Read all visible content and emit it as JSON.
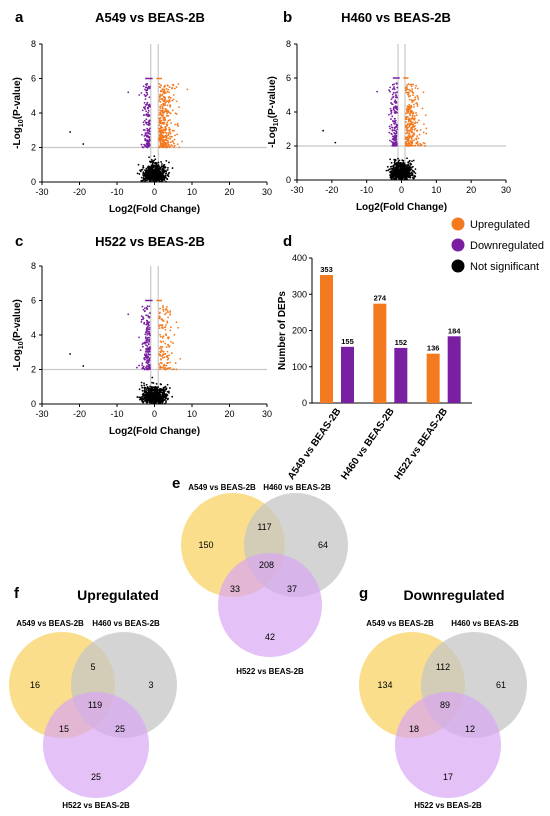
{
  "colors": {
    "up": "#f47a1f",
    "down": "#7a1fa2",
    "ns": "#000000",
    "grid": "#c8c8c8",
    "vennA": "#f8d366",
    "vennB": "#c6c6c6",
    "vennC": "#d9a6f2"
  },
  "panels": {
    "a": "a",
    "b": "b",
    "c": "c",
    "d": "d",
    "e": "e",
    "f": "f",
    "g": "g"
  },
  "legend": [
    {
      "label": "Upregulated",
      "color": "#f47a1f"
    },
    {
      "label": "Downregulated",
      "color": "#7a1fa2"
    },
    {
      "label": "Not significant",
      "color": "#000000"
    }
  ],
  "chart_data": [
    {
      "id": "a",
      "type": "scatter",
      "title": "A549 vs BEAS-2B",
      "xlabel": "Log2(Fold Change)",
      "ylabel_main": "-Log",
      "ylabel_sub": "10",
      "ylabel_rest": "(P-value)",
      "xlim": [
        -30,
        30
      ],
      "ylim": [
        0,
        8
      ],
      "xticks": [
        -30,
        -20,
        -10,
        0,
        10,
        20,
        30
      ],
      "yticks": [
        0,
        2,
        4,
        6,
        8
      ],
      "thresholds": {
        "y": 2,
        "x": [
          -1,
          1
        ]
      },
      "seed": 7,
      "counts": {
        "up": 353,
        "down": 155,
        "ns": 700
      }
    },
    {
      "id": "b",
      "type": "scatter",
      "title": "H460 vs BEAS-2B",
      "xlabel": "Log2(Fold Change)",
      "ylabel_main": "-Log",
      "ylabel_sub": "10",
      "ylabel_rest": "(P-value)",
      "xlim": [
        -30,
        30
      ],
      "ylim": [
        0,
        8
      ],
      "xticks": [
        -30,
        -20,
        -10,
        0,
        10,
        20,
        30
      ],
      "yticks": [
        0,
        2,
        4,
        6,
        8
      ],
      "thresholds": {
        "y": 2,
        "x": [
          -1,
          1
        ]
      },
      "seed": 19,
      "counts": {
        "up": 274,
        "down": 152,
        "ns": 700
      }
    },
    {
      "id": "c",
      "type": "scatter",
      "title": "H522 vs BEAS-2B",
      "xlabel": "Log2(Fold Change)",
      "ylabel_main": "-Log",
      "ylabel_sub": "10",
      "ylabel_rest": "(P-value)",
      "xlim": [
        -30,
        30
      ],
      "ylim": [
        0,
        8
      ],
      "xticks": [
        -30,
        -20,
        -10,
        0,
        10,
        20,
        30
      ],
      "yticks": [
        0,
        2,
        4,
        6,
        8
      ],
      "thresholds": {
        "y": 2,
        "x": [
          -1,
          1
        ]
      },
      "seed": 31,
      "counts": {
        "up": 136,
        "down": 184,
        "ns": 700
      }
    },
    {
      "id": "d",
      "type": "bar",
      "ylabel": "Number of DEPs",
      "ylim": [
        0,
        400
      ],
      "yticks": [
        0,
        100,
        200,
        300,
        400
      ],
      "categories": [
        "A549 vs BEAS-2B",
        "H460 vs BEAS-2B",
        "H522 vs BEAS-2B"
      ],
      "series": [
        {
          "name": "Upregulated",
          "values": [
            353,
            274,
            136
          ]
        },
        {
          "name": "Downregulated",
          "values": [
            155,
            152,
            184
          ]
        }
      ]
    }
  ],
  "venns": [
    {
      "id": "e",
      "title": "",
      "labels": [
        "A549 vs BEAS-2B",
        "H460 vs BEAS-2B",
        "H522 vs BEAS-2B"
      ],
      "regions": {
        "A": "150",
        "B": "64",
        "C": "42",
        "AB": "117",
        "AC": "33",
        "BC": "37",
        "ABC": "208"
      }
    },
    {
      "id": "f",
      "title": "Upregulated",
      "labels": [
        "A549 vs BEAS-2B",
        "H460 vs BEAS-2B",
        "H522 vs BEAS-2B"
      ],
      "regions": {
        "A": "16",
        "B": "3",
        "C": "25",
        "AB": "5",
        "AC": "15",
        "BC": "25",
        "ABC": "119"
      }
    },
    {
      "id": "g",
      "title": "Downregulated",
      "labels": [
        "A549 vs BEAS-2B",
        "H460 vs BEAS-2B",
        "H522 vs BEAS-2B"
      ],
      "regions": {
        "A": "134",
        "B": "61",
        "C": "17",
        "AB": "112",
        "AC": "18",
        "BC": "12",
        "ABC": "89"
      }
    }
  ]
}
